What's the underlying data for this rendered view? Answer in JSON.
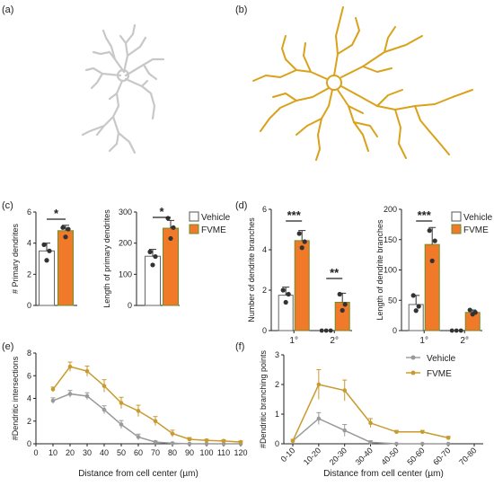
{
  "panel_labels": {
    "a": "(a)",
    "b": "(b)",
    "c": "(c)",
    "d": "(d)",
    "e": "(e)",
    "f": "(f)"
  },
  "colors": {
    "vehicle": "#ffffff",
    "fvme": "#f07a2a",
    "vehicle_line": "#9a9a9a",
    "fvme_line": "#c99a2e",
    "neuron_a": "#c8c8c8",
    "neuron_b": "#d9a21a",
    "point": "#333333"
  },
  "significance": {
    "c1": "*",
    "c2": "*",
    "d1_primary": "***",
    "d1_secondary": "**",
    "d2_primary": "***"
  },
  "legend": {
    "vehicle": "Vehicle",
    "fvme": "FVME"
  },
  "chart_data": [
    {
      "id": "c1",
      "type": "bar",
      "ylabel": "# Primary dendrites",
      "categories": [
        "Vehicle",
        "FVME"
      ],
      "values": [
        3.5,
        4.8
      ],
      "errors": [
        0.5,
        0.35
      ],
      "points": [
        [
          3.9,
          3.5,
          2.9
        ],
        [
          5.0,
          4.9,
          4.4
        ]
      ],
      "ylim": [
        0,
        6
      ],
      "yticks": [
        0,
        2,
        4,
        6
      ]
    },
    {
      "id": "c2",
      "type": "bar",
      "ylabel": "Length of primary dendrites",
      "categories": [
        "Vehicle",
        "FVME"
      ],
      "values": [
        158,
        248
      ],
      "errors": [
        22,
        25
      ],
      "points": [
        [
          172,
          157,
          130
        ],
        [
          280,
          250,
          215
        ]
      ],
      "ylim": [
        0,
        300
      ],
      "yticks": [
        0,
        100,
        200,
        300
      ]
    },
    {
      "id": "d1",
      "type": "bar",
      "ylabel": "Number of dendrite branches",
      "groups": [
        "1°",
        "2°"
      ],
      "series": [
        {
          "name": "Vehicle",
          "values": [
            1.75,
            0.0
          ],
          "errors": [
            0.4,
            0.0
          ],
          "points": [
            [
              2.0,
              1.8,
              1.4
            ],
            [
              0,
              0,
              0
            ]
          ]
        },
        {
          "name": "FVME",
          "values": [
            4.45,
            1.4
          ],
          "errors": [
            0.5,
            0.45
          ],
          "points": [
            [
              4.8,
              4.4,
              4.1
            ],
            [
              1.8,
              1.3,
              1.0
            ]
          ]
        }
      ],
      "ylim": [
        0,
        6
      ],
      "yticks": [
        0,
        2,
        4,
        6
      ]
    },
    {
      "id": "d2",
      "type": "bar",
      "ylabel": "Length of dendrite branches",
      "groups": [
        "1°",
        "2°"
      ],
      "series": [
        {
          "name": "Vehicle",
          "values": [
            43,
            0
          ],
          "errors": [
            15,
            0
          ],
          "points": [
            [
              58,
              40,
              33
            ],
            [
              0,
              0,
              0
            ]
          ]
        },
        {
          "name": "FVME",
          "values": [
            142,
            30
          ],
          "errors": [
            28,
            4
          ],
          "points": [
            [
              165,
              148,
              115
            ],
            [
              34,
              30,
              27
            ]
          ]
        }
      ],
      "ylim": [
        0,
        200
      ],
      "yticks": [
        0,
        50,
        100,
        150,
        200
      ]
    },
    {
      "id": "e",
      "type": "line",
      "xlabel": "Distance from cell center (µm)",
      "ylabel": "#Dendritic intersections",
      "x": [
        10,
        20,
        30,
        40,
        50,
        60,
        70,
        80,
        90,
        100,
        110,
        120
      ],
      "series": [
        {
          "name": "Vehicle",
          "values": [
            3.8,
            4.4,
            4.2,
            3.0,
            1.7,
            0.6,
            0.15,
            0.05,
            0.0,
            0.0,
            0.0,
            0.0
          ],
          "errors": [
            0.25,
            0.3,
            0.3,
            0.35,
            0.35,
            0.25,
            0.1,
            0.05,
            0,
            0,
            0,
            0
          ]
        },
        {
          "name": "FVME",
          "values": [
            4.8,
            6.8,
            6.4,
            5.1,
            3.6,
            2.9,
            2.0,
            0.9,
            0.4,
            0.3,
            0.25,
            0.15
          ],
          "errors": [
            0.2,
            0.4,
            0.45,
            0.55,
            0.5,
            0.5,
            0.4,
            0.3,
            0.15,
            0.1,
            0.1,
            0.1
          ]
        }
      ],
      "ylim": [
        0,
        8
      ],
      "yticks": [
        0,
        2,
        4,
        6,
        8
      ],
      "xlim": [
        0,
        120
      ],
      "xticks": [
        0,
        10,
        20,
        30,
        40,
        50,
        60,
        70,
        80,
        90,
        100,
        110,
        120
      ]
    },
    {
      "id": "f",
      "type": "line",
      "xlabel": "Distance from cell center (µm)",
      "ylabel": "#Dendritic branching points",
      "categories": [
        "0-10",
        "10-20",
        "20-30",
        "30-40",
        "40-50",
        "50-60",
        "60-70",
        "70-80"
      ],
      "series": [
        {
          "name": "Vehicle",
          "values": [
            0.1,
            0.85,
            0.45,
            0.05,
            0.0,
            0.0,
            0.0,
            null
          ],
          "errors": [
            0.05,
            0.2,
            0.2,
            0.05,
            0,
            0,
            0,
            null
          ]
        },
        {
          "name": "FVME",
          "values": [
            0.1,
            2.0,
            1.8,
            0.7,
            0.4,
            0.4,
            0.2,
            null
          ],
          "errors": [
            0.05,
            0.5,
            0.35,
            0.15,
            0.05,
            0.05,
            0.05,
            null
          ]
        }
      ],
      "ylim": [
        0,
        3
      ],
      "yticks": [
        0,
        1,
        2,
        3
      ]
    }
  ]
}
